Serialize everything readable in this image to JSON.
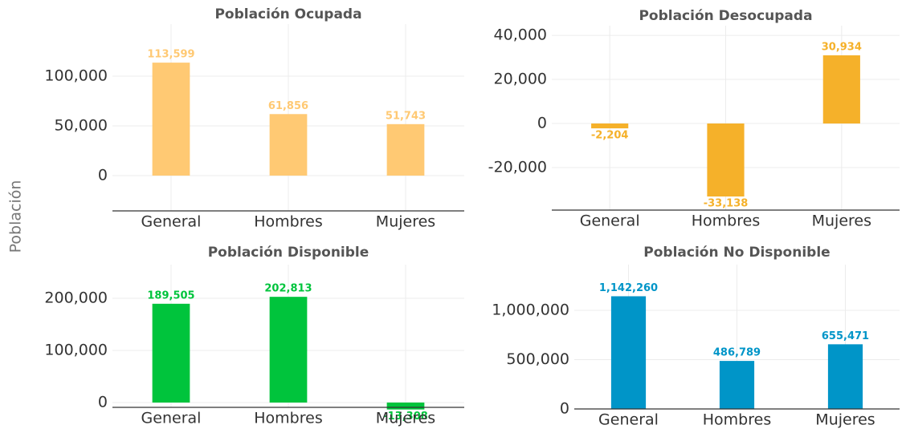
{
  "ylabel": "Población",
  "chart_data": [
    {
      "type": "bar",
      "title": "Población Ocupada",
      "categories": [
        "General",
        "Hombres",
        "Mujeres"
      ],
      "values": [
        113599,
        61856,
        51743
      ],
      "value_labels": [
        "113,599",
        "61,856",
        "51,743"
      ],
      "color": "#ffc973",
      "ylim": [
        -35500,
        152400
      ],
      "yticks": [
        0,
        {
          "value": 50000,
          "label": "50,000"
        },
        {
          "value": 100000,
          "label": "100,000"
        }
      ],
      "grid": true
    },
    {
      "type": "bar",
      "title": "Población Desocupada",
      "categories": [
        "General",
        "Hombres",
        "Mujeres"
      ],
      "values": [
        -2204,
        -33138,
        30934
      ],
      "value_labels": [
        "-2,204",
        "-33,138",
        "30,934"
      ],
      "color": "#f5b12a",
      "ylim": [
        -39300,
        44400
      ],
      "yticks": [
        {
          "value": -20000,
          "label": "-20,000"
        },
        0,
        {
          "value": 20000,
          "label": "20,000"
        },
        {
          "value": 40000,
          "label": "40,000"
        }
      ],
      "grid": true
    },
    {
      "type": "bar",
      "title": "Población Disponible",
      "categories": [
        "General",
        "Hombres",
        "Mujeres"
      ],
      "values": [
        189505,
        202813,
        -13308
      ],
      "value_labels": [
        "189,505",
        "202,813",
        "-13,308"
      ],
      "color": "#00c43c",
      "ylim": [
        -9200,
        264600
      ],
      "yticks": [
        0,
        {
          "value": 100000,
          "label": "100,000"
        },
        {
          "value": 200000,
          "label": "200,000"
        }
      ],
      "grid": true
    },
    {
      "type": "bar",
      "title": "Población No Disponible",
      "categories": [
        "General",
        "Hombres",
        "Mujeres"
      ],
      "values": [
        1142260,
        486789,
        655471
      ],
      "value_labels": [
        "1,142,260",
        "486,789",
        "655,471"
      ],
      "color": "#0095c8",
      "ylim": [
        0,
        1463000
      ],
      "yticks": [
        0,
        {
          "value": 500000,
          "label": "500,000"
        },
        {
          "value": 1000000,
          "label": "1,000,000"
        }
      ],
      "grid": true
    }
  ]
}
